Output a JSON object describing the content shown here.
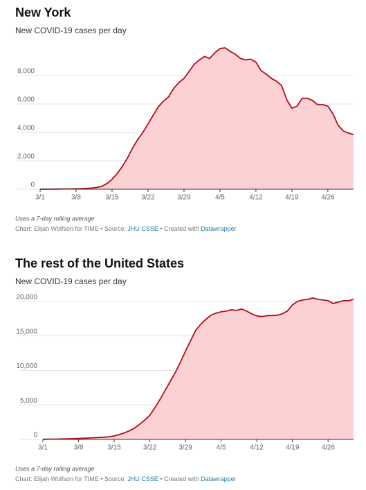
{
  "chart_data": [
    {
      "type": "area",
      "title": "New York",
      "subtitle": "New COVID-19 cases per day",
      "categories": [
        "3/1",
        null,
        null,
        null,
        null,
        null,
        null,
        "3/8",
        null,
        null,
        null,
        null,
        null,
        null,
        "3/15",
        null,
        null,
        null,
        null,
        null,
        null,
        "3/22",
        null,
        null,
        null,
        null,
        null,
        null,
        "3/29",
        null,
        null,
        null,
        null,
        null,
        null,
        "4/5",
        null,
        null,
        null,
        null,
        null,
        null,
        "4/12",
        null,
        null,
        null,
        null,
        null,
        null,
        "4/19",
        null,
        null,
        null,
        null,
        null,
        null,
        "4/26",
        null,
        null,
        null,
        null,
        null
      ],
      "values": [
        0,
        0,
        5,
        10,
        15,
        20,
        25,
        30,
        40,
        60,
        80,
        120,
        200,
        400,
        700,
        1100,
        1600,
        2200,
        2900,
        3500,
        4000,
        4600,
        5200,
        5800,
        6200,
        6500,
        7100,
        7500,
        7800,
        8300,
        8800,
        9100,
        9350,
        9200,
        9600,
        9900,
        9950,
        9700,
        9500,
        9200,
        9100,
        9150,
        8950,
        8350,
        8100,
        7800,
        7600,
        7300,
        6300,
        5700,
        5850,
        6400,
        6400,
        6250,
        5950,
        5950,
        5850,
        5300,
        4500,
        4100,
        3950,
        3850
      ],
      "color": "#b20d17",
      "area_color": "#fbd1d4",
      "ylim": [
        0,
        10000
      ],
      "yticks": [
        0,
        {
          "value": 2000,
          "label": "2,000"
        },
        {
          "value": 4000,
          "label": "4,000"
        },
        {
          "value": 6000,
          "label": "6,000"
        },
        {
          "value": 8000,
          "label": "8,000"
        }
      ],
      "grid": true,
      "note": "Uses a 7-day rolling average",
      "credit": {
        "chart": "Chart: Elijah Wolfson for TIME • Source: ",
        "source": "JHU CSSE",
        "tool_prefix": " • Created with ",
        "tool": "Datawrapper"
      }
    },
    {
      "type": "area",
      "title": "The rest of the United States",
      "subtitle": "New COVID-19 cases per day",
      "categories": [
        "3/1",
        null,
        null,
        null,
        null,
        null,
        null,
        "3/8",
        null,
        null,
        null,
        null,
        null,
        null,
        "3/15",
        null,
        null,
        null,
        null,
        null,
        null,
        "3/22",
        null,
        null,
        null,
        null,
        null,
        null,
        "3/29",
        null,
        null,
        null,
        null,
        null,
        null,
        "4/5",
        null,
        null,
        null,
        null,
        null,
        null,
        "4/12",
        null,
        null,
        null,
        null,
        null,
        null,
        "4/19",
        null,
        null,
        null,
        null,
        null,
        null,
        "4/26",
        null,
        null,
        null,
        null,
        null
      ],
      "values": [
        20,
        30,
        40,
        50,
        70,
        90,
        110,
        140,
        170,
        200,
        240,
        280,
        320,
        380,
        500,
        700,
        950,
        1250,
        1650,
        2200,
        2800,
        3500,
        4600,
        5800,
        7100,
        8400,
        9700,
        11200,
        12800,
        14300,
        15800,
        16700,
        17400,
        18000,
        18300,
        18500,
        18600,
        18800,
        18700,
        18900,
        18600,
        18200,
        17900,
        17800,
        17950,
        17950,
        18000,
        18200,
        18600,
        19500,
        20000,
        20200,
        20300,
        20500,
        20300,
        20200,
        20100,
        19700,
        19900,
        20100,
        20100,
        20300
      ],
      "color": "#b20d17",
      "area_color": "#fbd1d4",
      "ylim": [
        0,
        22000
      ],
      "yticks": [
        0,
        {
          "value": 5000,
          "label": "5,000"
        },
        {
          "value": 10000,
          "label": "10,000"
        },
        {
          "value": 15000,
          "label": "15,000"
        },
        {
          "value": 20000,
          "label": "20,000"
        }
      ],
      "grid": true,
      "note": "Uses a 7-day rolling average",
      "credit": {
        "chart": "Chart: Elijah Wolfson for TIME • Source: ",
        "source": "JHU CSSE",
        "tool_prefix": " • Created with ",
        "tool": "Datawrapper"
      }
    }
  ]
}
